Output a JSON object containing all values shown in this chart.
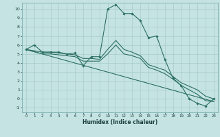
{
  "xlabel": "Humidex (Indice chaleur)",
  "bg_color": "#c5e3e3",
  "grid_color": "#a8cccc",
  "line_color": "#2a6e63",
  "xlim": [
    -0.5,
    23.5
  ],
  "ylim": [
    -1.5,
    10.7
  ],
  "xticks": [
    0,
    1,
    2,
    3,
    4,
    5,
    6,
    7,
    8,
    9,
    10,
    11,
    12,
    13,
    14,
    15,
    16,
    17,
    18,
    19,
    20,
    21,
    22,
    23
  ],
  "yticks": [
    -1,
    0,
    1,
    2,
    3,
    4,
    5,
    6,
    7,
    8,
    9,
    10
  ],
  "lines": [
    {
      "x": [
        0,
        1,
        2,
        3,
        4,
        5,
        6,
        7,
        8,
        9,
        10,
        11,
        12,
        13,
        14,
        15,
        16,
        17,
        18,
        19,
        20,
        21,
        22,
        23
      ],
      "y": [
        5.5,
        6.0,
        5.2,
        5.2,
        5.2,
        5.0,
        5.1,
        3.7,
        4.7,
        4.7,
        10.0,
        10.5,
        9.5,
        9.5,
        8.7,
        6.8,
        7.0,
        4.4,
        2.3,
        1.5,
        0.0,
        -0.5,
        -0.8,
        0.0
      ],
      "markers": true
    },
    {
      "x": [
        0,
        2,
        3,
        4,
        5,
        6,
        7,
        8,
        9,
        10,
        11,
        12,
        13,
        14,
        15,
        16,
        17,
        18,
        19,
        20,
        21,
        22,
        23
      ],
      "y": [
        5.5,
        5.2,
        5.2,
        5.1,
        5.0,
        4.9,
        4.5,
        4.5,
        4.4,
        5.5,
        6.5,
        5.5,
        5.2,
        4.8,
        3.8,
        3.5,
        3.2,
        2.5,
        1.8,
        1.4,
        1.0,
        0.3,
        0.0
      ],
      "markers": false
    },
    {
      "x": [
        0,
        2,
        3,
        4,
        5,
        6,
        7,
        8,
        9,
        10,
        11,
        12,
        13,
        14,
        15,
        16,
        17,
        18,
        19,
        20,
        21,
        22,
        23
      ],
      "y": [
        5.5,
        5.0,
        5.0,
        4.9,
        4.8,
        4.7,
        4.2,
        4.2,
        4.2,
        5.0,
        6.0,
        5.0,
        4.8,
        4.5,
        3.5,
        3.2,
        2.8,
        2.2,
        1.5,
        1.0,
        0.5,
        -0.2,
        -0.3
      ],
      "markers": false
    },
    {
      "x": [
        0,
        23
      ],
      "y": [
        5.5,
        -0.3
      ],
      "markers": false
    }
  ]
}
